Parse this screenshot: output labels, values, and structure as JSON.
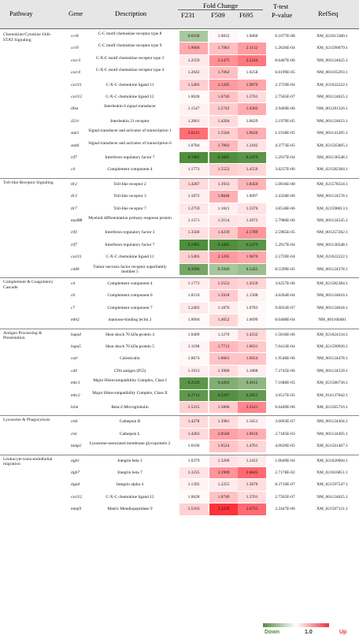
{
  "header": {
    "pathway": "Pathway",
    "gene": "Gene",
    "description": "Description",
    "fold_change": "Fold Change",
    "f231": "F231",
    "f509": "F509",
    "f695": "F695",
    "ttest": "T-test",
    "pvalue": "P-value",
    "refseq": "RefSeq"
  },
  "sections": [
    {
      "pathway": "Chemokine/Cytokine JAK-STAT Signaling",
      "rows": [
        {
          "gene": "ccr8",
          "desc": "C-C motif chemokine receptor type 8",
          "f231": "0.6100",
          "f509": "1.0832",
          "f695": "1.0060",
          "p": "6.1677E-08",
          "ref": "XM_021613380.1"
        },
        {
          "gene": "ccr9",
          "desc": "C-C motif chemokine receptor type 9",
          "f231": "1.9660",
          "f509": "1.7083",
          "f695": "2.1112",
          "p": "1.2626E-04",
          "ref": "XM_021590079.1"
        },
        {
          "gene": "cxcr3",
          "desc": "C-X-C motif chemokine receptor type 3",
          "f231": "1.2559",
          "f509": "2.2475",
          "f695": "2.5244",
          "p": "8.6467E-06",
          "ref": "NM_001124625.1"
        },
        {
          "gene": "cxcr4",
          "desc": "C-X-C motif chemokine receptor type 4",
          "f231": "1.2042",
          "f509": "1.7062",
          "f695": "1.0258",
          "p": "6.6199E-05",
          "ref": "NM_001165293.1"
        },
        {
          "gene": "cxcl11",
          "desc": "C-X-C chemokine ligand 11",
          "f231": "1.5403",
          "f509": "2.1205",
          "f695": "1.9870",
          "p": "2.3759E-04",
          "ref": "XM_021622222.1"
        },
        {
          "gene": "cxcl12",
          "desc": "C-X-C chemokine ligand 12",
          "f231": "1.0628",
          "f509": "1.6740",
          "f695": "1.3761",
          "p": "2.7565E-07",
          "ref": "NM_001124625.1"
        },
        {
          "gene": "il6st",
          "desc": "Interleukin 6 signal transducer",
          "f231": "1.1547",
          "f509": "1.5743",
          "f695": "1.9282",
          "p": "2.9469E-06",
          "ref": "NM_001281326.1"
        },
        {
          "gene": "il21r",
          "desc": "Interleukin 21 receptor",
          "f231": "1.2061",
          "f509": "1.4204",
          "f695": "1.0629",
          "p": "2.1979E-05",
          "ref": "NM_001124623.1"
        },
        {
          "gene": "stat1",
          "desc": "Signal transducer and activator of transcription 1",
          "f231": "2.6121",
          "f509": "1.5504",
          "f695": "1.9020",
          "p": "1.1918E-05",
          "ref": "NM_001141285.1"
        },
        {
          "gene": "stat6",
          "desc": "Signal transducer and activator of transcription 6",
          "f231": "1.0784",
          "f509": "1.7802",
          "f695": "1.3182",
          "p": "4.3773E-05",
          "ref": "XM_021565805.1"
        },
        {
          "gene": "irf7",
          "desc": "Interferon regulatory factor 7",
          "f231": "0.1985",
          "f509": "0.1805",
          "f695": "0.2479",
          "p": "5.2917E-04",
          "ref": "NM_001136548.1"
        },
        {
          "gene": "c4",
          "desc": "Complement component 4",
          "f231": "1.1773",
          "f509": "1.5552",
          "f695": "1.4550",
          "p": "3.6257E-06",
          "ref": "XM_021582384.1"
        }
      ]
    },
    {
      "pathway": "Toll-like Receptor Signaling",
      "rows": [
        {
          "gene": "tlr2",
          "desc": "Toll-like receptor 2",
          "f231": "1.4287",
          "f509": "1.3933",
          "f695": "1.8450",
          "p": "5.0016E-08",
          "ref": "XM_021578334.1"
        },
        {
          "gene": "tlr3",
          "desc": "Toll-like receptor 3",
          "f231": "1.1872",
          "f509": "1.8848",
          "f695": "1.0097",
          "p": "2.4358E-06",
          "ref": "NM_001124578.1"
        },
        {
          "gene": "tlr7",
          "desc": "Toll-like receptor 7",
          "f231": "1.2759",
          "f509": "1.1821",
          "f695": "1.3376",
          "p": "3.8518E-06",
          "ref": "XM_021598013.1"
        },
        {
          "gene": "myd88",
          "desc": "Myeloid differentiation primary response protein",
          "f231": "1.1571",
          "f509": "1.3154",
          "f695": "1.2672",
          "p": "5.7986E-06",
          "ref": "NM_001124545.1"
        },
        {
          "gene": "irf3",
          "desc": "Interferon regulatory factor 3",
          "f231": "1.3560",
          "f509": "1.6239",
          "f695": "2.1789",
          "p": "2.5965E-05",
          "ref": "NM_001257262.1"
        },
        {
          "gene": "irf7",
          "desc": "Interferon regulatory factor 7",
          "f231": "0.1985",
          "f509": "0.1805",
          "f695": "0.2479",
          "p": "5.2917E-04",
          "ref": "NM_001136548.1"
        },
        {
          "gene": "cxcl11",
          "desc": "C-X-C chemokine ligand 11",
          "f231": "1.5403",
          "f509": "2.1205",
          "f695": "1.9870",
          "p": "2.3759E-04",
          "ref": "XM_021622222.1"
        },
        {
          "gene": "cd40",
          "desc": "Tumor necrosis factor receptor superfamily member 5",
          "f231": "0.3696",
          "f509": "0.5940",
          "f695": "0.5425",
          "p": "8.5599E-05",
          "ref": "NM_001124378.1"
        }
      ]
    },
    {
      "pathway": "Complement & Coagulatory Cascade",
      "rows": [
        {
          "gene": "c4",
          "desc": "Complement component 4",
          "f231": "1.1773",
          "f509": "1.5552",
          "f695": "1.4550",
          "p": "3.6257E-06",
          "ref": "XM_021582384.1"
        },
        {
          "gene": "c6",
          "desc": "Complement component 6",
          "f231": "1.0510",
          "f509": "1.5918",
          "f695": "1.1508",
          "p": "4.6264E-04",
          "ref": "NM_001124616.1"
        },
        {
          "gene": "c7",
          "desc": "Complement component 7",
          "f231": "1.2403",
          "f509": "1.1876",
          "f695": "1.0783",
          "p": "9.6032E-07",
          "ref": "NM_001124618.1"
        },
        {
          "gene": "mbl2",
          "desc": "mannose-binding lectin 2",
          "f231": "1.0694",
          "f509": "1.4652",
          "f695": "1.0699",
          "p": "8.0408E-04",
          "ref": "NM_001160481"
        }
      ]
    },
    {
      "pathway": "Antigen Processing & Presentation",
      "rows": [
        {
          "gene": "hspa4",
          "desc": "Heat shock 70 kDa protein 4",
          "f231": "1.0409",
          "f509": "1.1270",
          "f695": "1.4332",
          "p": "1.5816E-06",
          "ref": "XM_021624134.1"
        },
        {
          "gene": "hspa5",
          "desc": "Heat shock 70 kDa protein 5",
          "f231": "1.1198",
          "f509": "1.7713",
          "f695": "1.6031",
          "p": "7.0413E-04",
          "ref": "XM_021590926.1"
        },
        {
          "gene": "calr",
          "desc": "Calreticulin",
          "f231": "1.0674",
          "f509": "1.6661",
          "f695": "1.6654",
          "p": "1.9546E-06",
          "ref": "NM_001124478.1"
        },
        {
          "gene": "cd4",
          "desc": "CD4 antigen (P55)",
          "f231": "1.1913",
          "f509": "1.3900",
          "f695": "1.1808",
          "p": "7.2745E-06",
          "ref": "NM_001124539.1"
        },
        {
          "gene": "mhc1",
          "desc": "Major Histocompatibility Complex, Class I",
          "f231": "0.2529",
          "f509": "0.4262",
          "f695": "0.4912",
          "p": "7.1688E-05",
          "ref": "XM_021586736.1"
        },
        {
          "gene": "mhc2",
          "desc": "Major Histocompatibility Complex, Class II",
          "f231": "0.2714",
          "f509": "0.2207",
          "f695": "0.2852",
          "p": "3.6517E-05",
          "ref": "XM_014137042.1"
        },
        {
          "gene": "b2m",
          "desc": "Beta-2-Microglobulin",
          "f231": "1.5315",
          "f509": "1.5806",
          "f695": "2.3541",
          "p": "6.6449E-06",
          "ref": "XM_021565716.1"
        }
      ]
    },
    {
      "pathway": "Lysosome & Phagocytosis",
      "rows": [
        {
          "gene": "ctsb",
          "desc": "Cathepsin B",
          "f231": "1.4278",
          "f509": "1.3981",
          "f695": "1.1651",
          "p": "3.6093E-07",
          "ref": "NM_001124304.1"
        },
        {
          "gene": "ctsl",
          "desc": "Cathepsin L",
          "f231": "1.4263",
          "f509": "2.0560",
          "f695": "1.9010",
          "p": "2.7185E-03",
          "ref": "NM_001124305.1"
        },
        {
          "gene": "lamp2",
          "desc": "Lysosome-associated membrane glycoprotein 2",
          "f231": "1.0106",
          "f509": "1.6524",
          "f695": "1.4761",
          "p": "4.0639E-05",
          "ref": "XM_021561467.1"
        }
      ]
    },
    {
      "pathway": "Leukocyte trans-endothelial migration",
      "rows": [
        {
          "gene": "itgb1",
          "desc": "Integrin beta 1",
          "f231": "1.0379",
          "f509": "1.3206",
          "f695": "1.2412",
          "p": "1.0649E-04",
          "ref": "XM_021620604.1"
        },
        {
          "gene": "itgb7",
          "desc": "Integrin beta 7",
          "f231": "1.3235",
          "f509": "2.1969",
          "f695": "2.6845",
          "p": "2.7178E-02",
          "ref": "XM_021616851.1"
        },
        {
          "gene": "itga4",
          "desc": "Integrin alpha 4",
          "f231": "1.1392",
          "f509": "1.2255",
          "f695": "1.3670",
          "p": "8.3710E-07",
          "ref": "XM_021597547.1"
        },
        {
          "gene": "cxcl12",
          "desc": "C-X-C chemokine ligand 12",
          "f231": "1.0628",
          "f509": "1.6740",
          "f695": "1.3761",
          "p": "2.7565E-07",
          "ref": "NM_001124625.1"
        },
        {
          "gene": "mmp9",
          "desc": "Matrix Metallopeptidase 9",
          "f231": "1.5163",
          "f509": "3.3239",
          "f695": "2.6755",
          "p": "2.2447E-06",
          "ref": "XM_021567121.1"
        }
      ]
    }
  ],
  "legend": {
    "down": "Down",
    "mid": "1.0",
    "up": "Up",
    "color_down": "#4f8f3a",
    "color_mid": "#ffffff",
    "color_up": "#e8323c"
  }
}
